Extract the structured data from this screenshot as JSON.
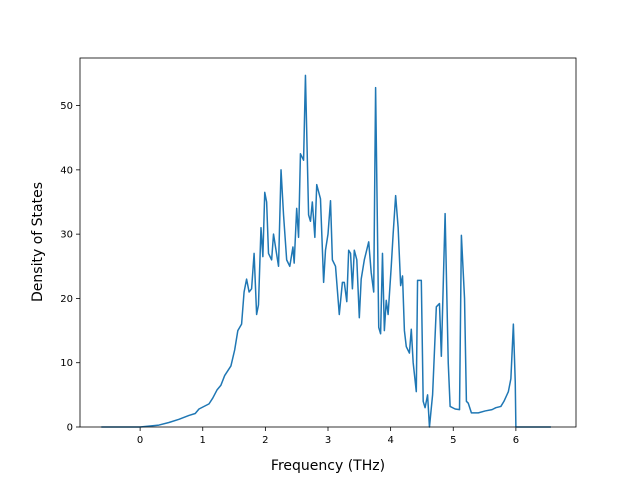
{
  "chart_data": {
    "type": "line",
    "x_label": "Frequency (THz)",
    "y_label": "Density of States",
    "xlim": [
      -0.96,
      6.96
    ],
    "ylim": [
      0,
      57.4
    ],
    "xticks": [
      0,
      1,
      2,
      3,
      4,
      5,
      6
    ],
    "yticks": [
      0,
      10,
      20,
      30,
      40,
      50
    ],
    "color": "#1f77b4",
    "x": [
      -0.62,
      0,
      0.3,
      0.46,
      0.62,
      0.78,
      0.88,
      0.94,
      1.1,
      1.16,
      1.23,
      1.29,
      1.35,
      1.45,
      1.51,
      1.56,
      1.62,
      1.66,
      1.7,
      1.74,
      1.78,
      1.82,
      1.86,
      1.89,
      1.93,
      1.96,
      1.99,
      2.02,
      2.05,
      2.1,
      2.13,
      2.21,
      2.25,
      2.29,
      2.34,
      2.39,
      2.44,
      2.46,
      2.5,
      2.53,
      2.56,
      2.61,
      2.64,
      2.69,
      2.72,
      2.75,
      2.79,
      2.82,
      2.88,
      2.93,
      2.96,
      3.0,
      3.04,
      3.07,
      3.12,
      3.18,
      3.23,
      3.26,
      3.3,
      3.33,
      3.36,
      3.39,
      3.42,
      3.46,
      3.5,
      3.53,
      3.58,
      3.65,
      3.69,
      3.73,
      3.76,
      3.81,
      3.84,
      3.87,
      3.9,
      3.93,
      3.96,
      4.01,
      4.04,
      4.08,
      4.12,
      4.16,
      4.19,
      4.22,
      4.25,
      4.3,
      4.33,
      4.36,
      4.41,
      4.43,
      4.49,
      4.52,
      4.55,
      4.59,
      4.62,
      4.67,
      4.73,
      4.78,
      4.81,
      4.87,
      4.92,
      4.95,
      5.03,
      5.1,
      5.13,
      5.18,
      5.21,
      5.24,
      5.29,
      5.4,
      5.51,
      5.62,
      5.68,
      5.76,
      5.81,
      5.88,
      5.92,
      5.96,
      5.99,
      6.0,
      6.56
    ],
    "values": [
      0,
      0,
      0.3,
      0.7,
      1.2,
      1.8,
      2.1,
      2.8,
      3.6,
      4.5,
      5.8,
      6.5,
      8,
      9.5,
      12,
      15,
      16,
      21,
      23,
      21,
      21.5,
      27,
      17.5,
      19,
      31,
      26.5,
      36.5,
      35,
      27,
      26,
      30,
      25,
      40,
      33,
      26,
      25,
      28,
      25.5,
      34,
      29.5,
      42.5,
      41.5,
      54.7,
      33,
      32,
      35,
      29.5,
      37.7,
      35.5,
      22.5,
      27.5,
      30,
      35.2,
      26,
      25,
      17.5,
      22.5,
      22.5,
      19.5,
      27.5,
      27,
      21.5,
      27.5,
      26,
      17,
      23,
      26,
      28.8,
      24,
      21,
      52.8,
      15.5,
      14.5,
      27,
      15,
      19.7,
      17.5,
      25,
      30,
      36,
      31,
      22,
      23.5,
      15,
      12.5,
      11.5,
      15.2,
      10,
      5.5,
      22.8,
      22.8,
      4,
      3,
      5,
      0,
      5,
      18.7,
      19.2,
      11,
      33.2,
      10,
      3.2,
      2.8,
      2.7,
      29.8,
      20,
      4,
      3.7,
      2.2,
      2.2,
      2.5,
      2.7,
      3.0,
      3.2,
      4,
      5.5,
      7.5,
      16,
      7,
      0,
      0
    ]
  }
}
